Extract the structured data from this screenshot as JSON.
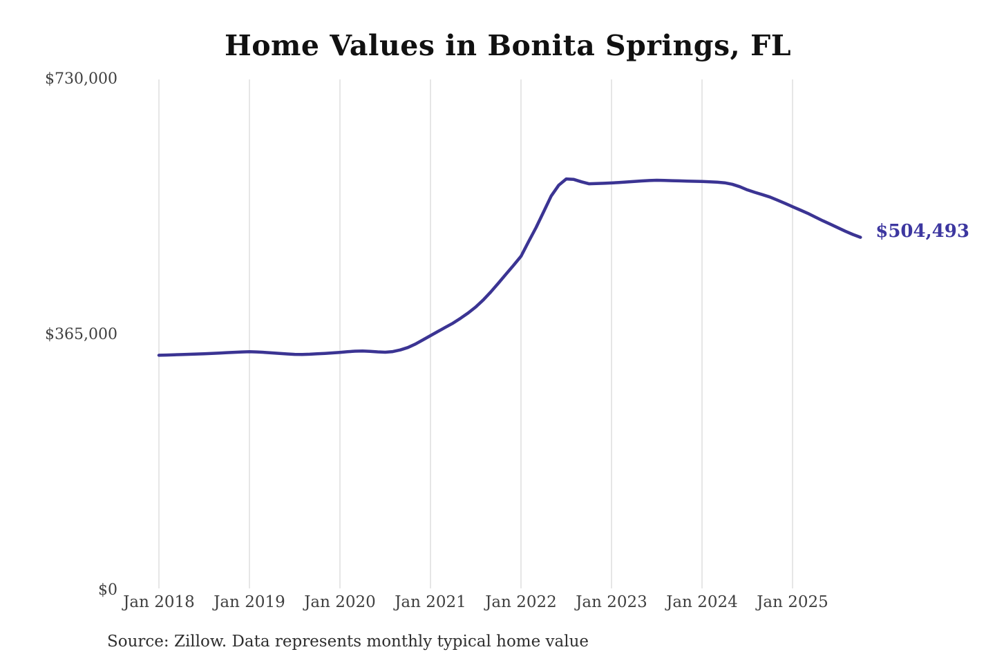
{
  "chart_data": {
    "type": "line",
    "title": "Home Values in Bonita Springs, FL",
    "source": "Source: Zillow. Data represents monthly typical home value",
    "end_label": "$504,493",
    "legend": "none",
    "grid": "vertical-only",
    "ylim": [
      0,
      730000
    ],
    "y_tick_labels": [
      "$730,000",
      "$365,000",
      "$0"
    ],
    "y_tick_values": [
      730000,
      365000,
      0
    ],
    "x_tick_labels": [
      "Jan 2018",
      "Jan 2019",
      "Jan 2020",
      "Jan 2021",
      "Jan 2022",
      "Jan 2023",
      "Jan 2024",
      "Jan 2025"
    ],
    "line_color": "#3b3493",
    "label_color": "#3d37a0",
    "grid_color": "#cccccc",
    "x": [
      "2018-01",
      "2018-02",
      "2018-03",
      "2018-04",
      "2018-05",
      "2018-06",
      "2018-07",
      "2018-08",
      "2018-09",
      "2018-10",
      "2018-11",
      "2018-12",
      "2019-01",
      "2019-02",
      "2019-03",
      "2019-04",
      "2019-05",
      "2019-06",
      "2019-07",
      "2019-08",
      "2019-09",
      "2019-10",
      "2019-11",
      "2019-12",
      "2020-01",
      "2020-02",
      "2020-03",
      "2020-04",
      "2020-05",
      "2020-06",
      "2020-07",
      "2020-08",
      "2020-09",
      "2020-10",
      "2020-11",
      "2020-12",
      "2021-01",
      "2021-02",
      "2021-03",
      "2021-04",
      "2021-05",
      "2021-06",
      "2021-07",
      "2021-08",
      "2021-09",
      "2021-10",
      "2021-11",
      "2021-12",
      "2022-01",
      "2022-02",
      "2022-03",
      "2022-04",
      "2022-05",
      "2022-06",
      "2022-07",
      "2022-08",
      "2022-09",
      "2022-10",
      "2022-11",
      "2022-12",
      "2023-01",
      "2023-02",
      "2023-03",
      "2023-04",
      "2023-05",
      "2023-06",
      "2023-07",
      "2023-08",
      "2023-09",
      "2023-10",
      "2023-11",
      "2023-12",
      "2024-01",
      "2024-02",
      "2024-03",
      "2024-04",
      "2024-05",
      "2024-06",
      "2024-07",
      "2024-08",
      "2024-09",
      "2024-10",
      "2024-11",
      "2024-12",
      "2025-01",
      "2025-02",
      "2025-03",
      "2025-04",
      "2025-05",
      "2025-06",
      "2025-07",
      "2025-08",
      "2025-09",
      "2025-10"
    ],
    "values": [
      336000,
      336300,
      336700,
      337000,
      337400,
      337800,
      338200,
      338700,
      339200,
      339700,
      340200,
      340700,
      341100,
      340700,
      340100,
      339400,
      338600,
      337900,
      337300,
      337200,
      337500,
      338100,
      338700,
      339400,
      340100,
      341000,
      341800,
      342100,
      341600,
      340800,
      340300,
      341200,
      343600,
      347000,
      352000,
      358000,
      364000,
      370000,
      376000,
      382000,
      389000,
      396500,
      405000,
      415000,
      426500,
      439000,
      451700,
      464300,
      477400,
      498200,
      518400,
      541000,
      563500,
      578900,
      587800,
      587200,
      583800,
      580900,
      581200,
      581600,
      582100,
      582800,
      583500,
      584300,
      585000,
      585600,
      586000,
      585800,
      585400,
      585100,
      584800,
      584500,
      584200,
      583800,
      583300,
      582300,
      580300,
      576800,
      572300,
      568700,
      565500,
      562000,
      557600,
      553000,
      548200,
      543600,
      538800,
      533400,
      528200,
      523200,
      518200,
      513200,
      508500,
      504493
    ]
  }
}
